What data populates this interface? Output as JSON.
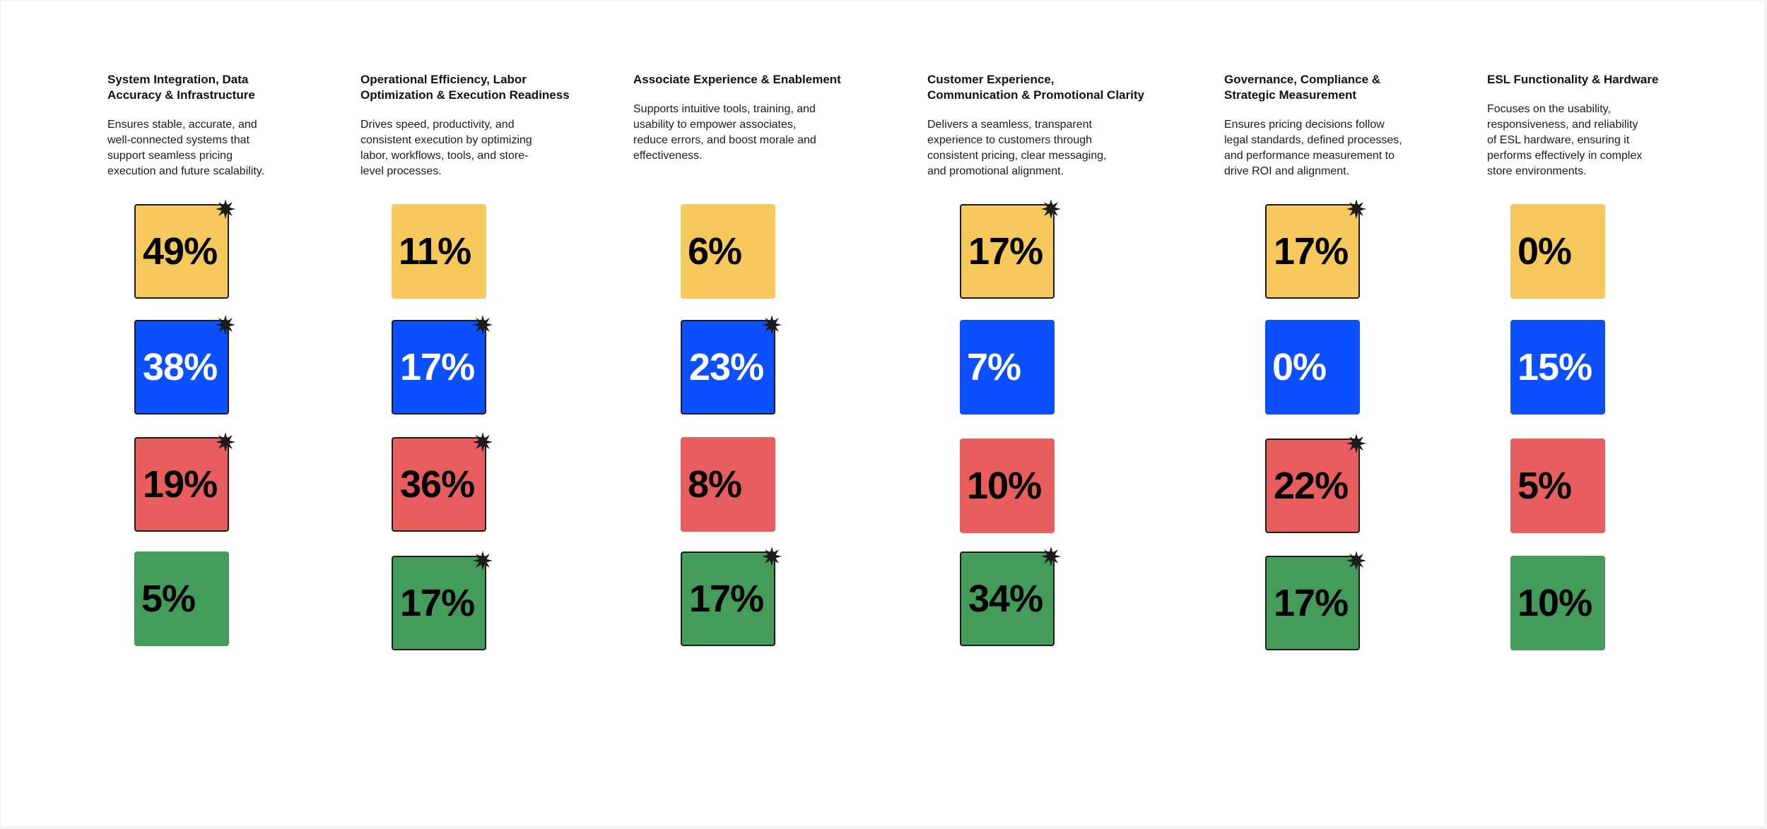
{
  "colors": {
    "yellow": "#f7c85c",
    "blue": "#0b4ffe",
    "red": "#e85d5d",
    "green": "#439c5a",
    "text_dark": "#000000",
    "text_light": "#ffffff"
  },
  "columns": [
    {
      "title_lines": [
        "System Integration, Data",
        "Accuracy & Infrastructure"
      ],
      "desc_lines": [
        "Ensures stable, accurate, and",
        "well-connected systems that",
        "support seamless pricing",
        "execution and future scalability."
      ],
      "tiles": [
        {
          "color": "yellow",
          "value": "49%",
          "starred": true
        },
        {
          "color": "blue",
          "value": "38%",
          "starred": true
        },
        {
          "color": "red",
          "value": "19%",
          "starred": true
        },
        {
          "color": "green",
          "value": "5%",
          "starred": false
        }
      ]
    },
    {
      "title_lines": [
        "Operational Efficiency, Labor",
        "Optimization & Execution Readiness"
      ],
      "desc_lines": [
        "Drives speed, productivity, and",
        "consistent execution by optimizing",
        "labor, workflows, tools, and store-",
        "level processes."
      ],
      "tiles": [
        {
          "color": "yellow",
          "value": "11%",
          "starred": false
        },
        {
          "color": "blue",
          "value": "17%",
          "starred": true
        },
        {
          "color": "red",
          "value": "36%",
          "starred": true
        },
        {
          "color": "green",
          "value": "17%",
          "starred": true
        }
      ]
    },
    {
      "title_lines": [
        "Associate Experience & Enablement"
      ],
      "desc_lines": [
        "Supports intuitive tools, training, and",
        "usability to empower associates,",
        "reduce errors, and boost morale and",
        "effectiveness."
      ],
      "tiles": [
        {
          "color": "yellow",
          "value": "6%",
          "starred": false
        },
        {
          "color": "blue",
          "value": "23%",
          "starred": true
        },
        {
          "color": "red",
          "value": "8%",
          "starred": false
        },
        {
          "color": "green",
          "value": "17%",
          "starred": true
        }
      ]
    },
    {
      "title_lines": [
        "Customer Experience,",
        "Communication & Promotional Clarity"
      ],
      "desc_lines": [
        "Delivers a seamless, transparent",
        "experience to customers through",
        "consistent pricing, clear messaging,",
        "and promotional alignment."
      ],
      "tiles": [
        {
          "color": "yellow",
          "value": "17%",
          "starred": true
        },
        {
          "color": "blue",
          "value": "7%",
          "starred": false
        },
        {
          "color": "red",
          "value": "10%",
          "starred": false
        },
        {
          "color": "green",
          "value": "34%",
          "starred": true
        }
      ]
    },
    {
      "title_lines": [
        "Governance, Compliance &",
        "Strategic Measurement"
      ],
      "desc_lines": [
        "Ensures pricing decisions follow",
        "legal standards, defined processes,",
        "and performance measurement to",
        "drive ROI and alignment."
      ],
      "tiles": [
        {
          "color": "yellow",
          "value": "17%",
          "starred": true
        },
        {
          "color": "blue",
          "value": "0%",
          "starred": false
        },
        {
          "color": "red",
          "value": "22%",
          "starred": true
        },
        {
          "color": "green",
          "value": "17%",
          "starred": true
        }
      ]
    },
    {
      "title_lines": [
        "ESL Functionality & Hardware"
      ],
      "desc_lines": [
        "Focuses on the usability,",
        "responsiveness, and reliability",
        "of ESL hardware, ensuring it",
        "performs effectively in complex",
        "store environments."
      ],
      "tiles": [
        {
          "color": "yellow",
          "value": "0%",
          "starred": false
        },
        {
          "color": "blue",
          "value": "15%",
          "starred": false
        },
        {
          "color": "red",
          "value": "5%",
          "starred": false
        },
        {
          "color": "green",
          "value": "10%",
          "starred": false
        }
      ]
    }
  ]
}
